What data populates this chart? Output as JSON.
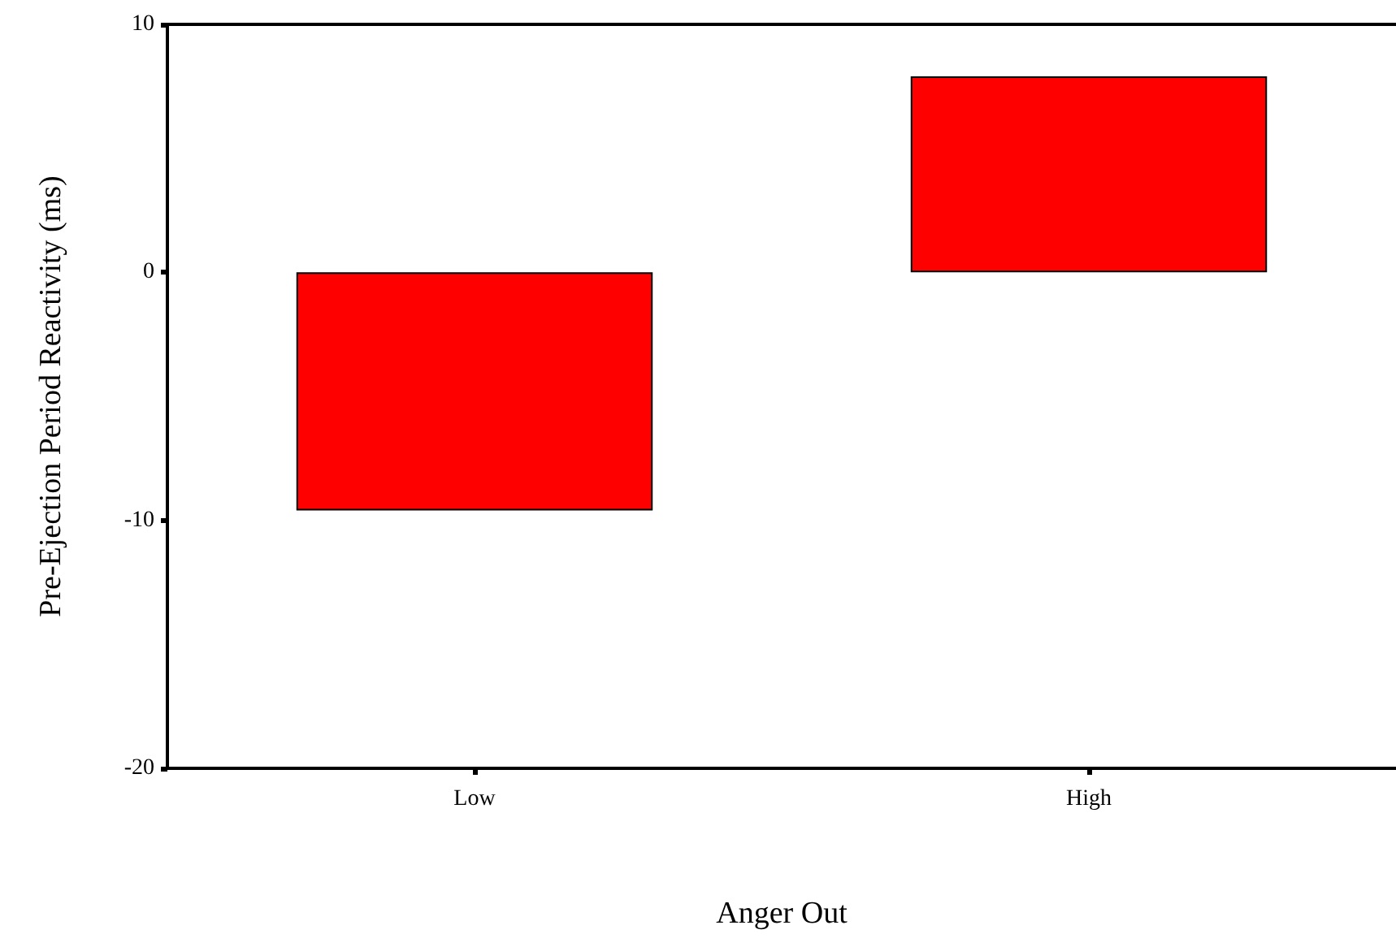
{
  "chart_data": {
    "type": "bar",
    "xlabel": "Anger Out",
    "ylabel": "Pre-Ejection Period Reactivity (ms)",
    "categories": [
      "Low",
      "High"
    ],
    "values": [
      -9.6,
      7.9
    ],
    "color": "#ff0000",
    "ylim": [
      -20,
      10
    ],
    "yticks": [
      -20,
      -10,
      0,
      10
    ],
    "grid": false
  }
}
